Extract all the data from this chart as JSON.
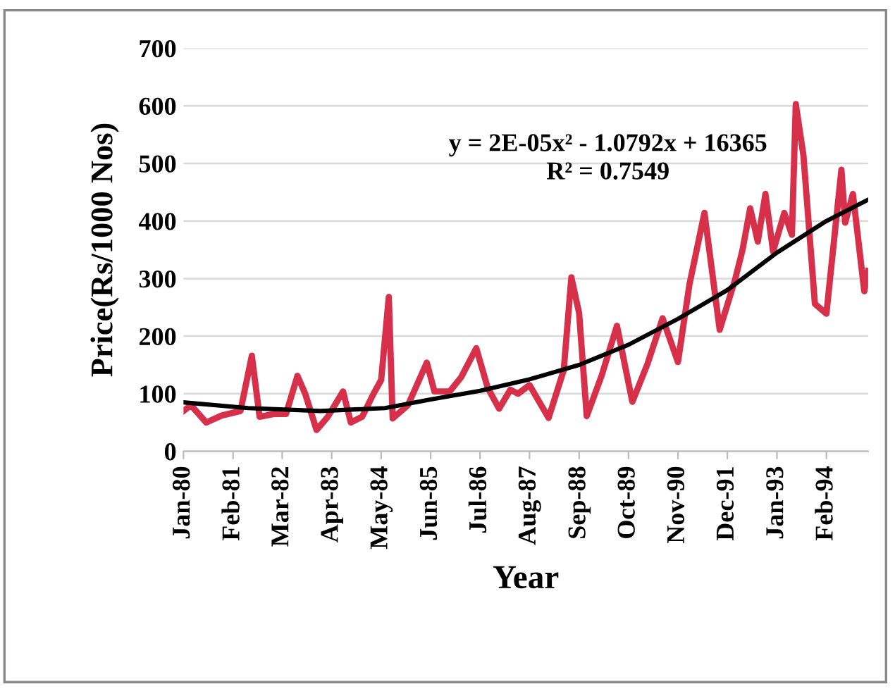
{
  "chart_data": {
    "type": "line",
    "xlabel": "Year",
    "ylabel": "Price(Rs/1000 Nos)",
    "annotations": [
      "y = 2E-05x² - 1.0792x + 16365",
      "R² = 0.7549"
    ],
    "xlim": [
      "1980-01",
      "1995-01"
    ],
    "xticks": [
      {
        "value": "1980-01",
        "label": "Jan-80"
      },
      {
        "value": "1981-02",
        "label": "Feb-81"
      },
      {
        "value": "1982-03",
        "label": "Mar-82"
      },
      {
        "value": "1983-04",
        "label": "Apr-83"
      },
      {
        "value": "1984-05",
        "label": "May-84"
      },
      {
        "value": "1985-06",
        "label": "Jun-85"
      },
      {
        "value": "1986-07",
        "label": "Jul-86"
      },
      {
        "value": "1987-08",
        "label": "Aug-87"
      },
      {
        "value": "1988-09",
        "label": "Sep-88"
      },
      {
        "value": "1989-10",
        "label": "Oct-89"
      },
      {
        "value": "1990-11",
        "label": "Nov-90"
      },
      {
        "value": "1991-12",
        "label": "Dec-91"
      },
      {
        "value": "1993-01",
        "label": "Jan-93"
      },
      {
        "value": "1994-02",
        "label": "Feb-94"
      }
    ],
    "ylim": [
      0,
      700
    ],
    "yticks": [
      0,
      100,
      200,
      300,
      400,
      500,
      600,
      700
    ],
    "grid": "y",
    "legend": false,
    "marker": "none",
    "line_style": "solid",
    "series": [
      {
        "color": "#d6304a",
        "x": [
          "1980-01",
          "1980-03",
          "1980-07",
          "1980-11",
          "1981-04",
          "1981-07",
          "1981-09",
          "1982-01",
          "1982-04",
          "1982-07",
          "1982-09",
          "1982-12",
          "1983-03",
          "1983-07",
          "1983-09",
          "1983-12",
          "1984-03",
          "1984-05",
          "1984-07",
          "1984-08",
          "1984-12",
          "1985-05",
          "1985-07",
          "1985-11",
          "1986-02",
          "1986-06",
          "1986-09",
          "1986-12",
          "1987-03",
          "1987-05",
          "1987-08",
          "1988-01",
          "1988-05",
          "1988-07",
          "1988-09",
          "1988-11",
          "1989-03",
          "1989-07",
          "1989-09",
          "1989-11",
          "1990-03",
          "1990-07",
          "1990-11",
          "1991-02",
          "1991-06",
          "1991-10",
          "1992-02",
          "1992-04",
          "1992-06",
          "1992-08",
          "1992-10",
          "1992-12",
          "1993-03",
          "1993-05",
          "1993-06",
          "1993-08",
          "1993-11",
          "1994-02",
          "1994-06",
          "1994-07",
          "1994-09",
          "1994-12",
          "1995-01"
        ],
        "values": [
          70,
          80,
          50,
          62,
          70,
          166,
          60,
          65,
          65,
          131,
          100,
          37,
          60,
          104,
          50,
          60,
          100,
          124,
          268,
          57,
          80,
          154,
          104,
          104,
          129,
          179,
          110,
          74,
          107,
          100,
          115,
          58,
          141,
          302,
          240,
          61,
          132,
          218,
          151,
          86,
          151,
          231,
          155,
          290,
          414,
          211,
          298,
          350,
          422,
          364,
          447,
          347,
          414,
          376,
          603,
          514,
          256,
          239,
          489,
          397,
          447,
          278,
          313
        ]
      },
      {
        "type": "line",
        "color": "#000000",
        "x": [
          "1980-01",
          "1981-06",
          "1983-01",
          "1984-06",
          "1985-06",
          "1986-07",
          "1987-08",
          "1988-09",
          "1989-10",
          "1990-11",
          "1991-12",
          "1993-01",
          "1994-02",
          "1995-01"
        ],
        "values": [
          85,
          75,
          70,
          75,
          90,
          105,
          125,
          150,
          185,
          230,
          280,
          345,
          400,
          437
        ]
      }
    ]
  }
}
